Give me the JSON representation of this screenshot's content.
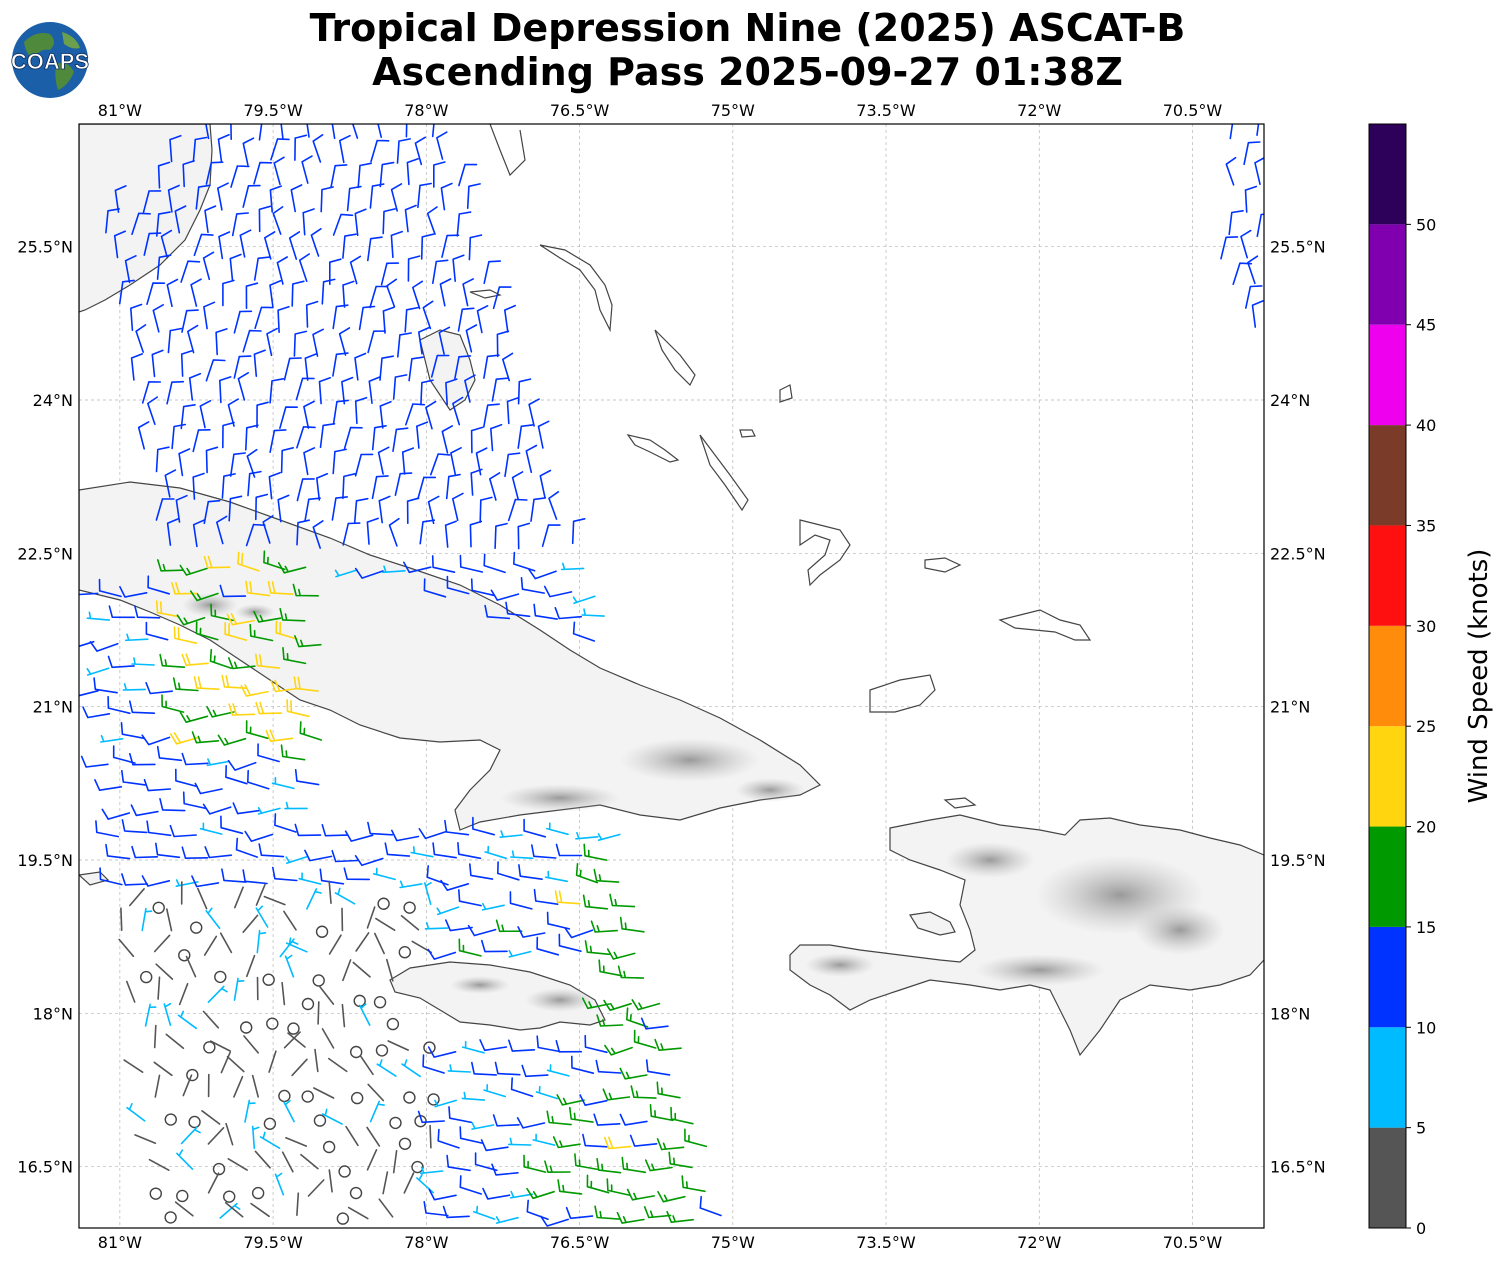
{
  "title": {
    "line1": "Tropical Depression Nine (2025) ASCAT-B",
    "line2": "Ascending Pass 2025-09-27 01:38Z"
  },
  "logo": {
    "text": "COAPS",
    "ocean_color": "#1a5fa8",
    "land_color": "#4f8a3c"
  },
  "map": {
    "lon_range": [
      -81.4,
      -69.8
    ],
    "lat_range": [
      15.9,
      26.7
    ],
    "lon_ticks": [
      -81,
      -79.5,
      -78,
      -76.5,
      -75,
      -73.5,
      -72,
      -70.5
    ],
    "lat_ticks": [
      25.5,
      24,
      22.5,
      21,
      19.5,
      18,
      16.5
    ],
    "lon_tick_labels": [
      "81°W",
      "79.5°W",
      "78°W",
      "76.5°W",
      "75°W",
      "73.5°W",
      "72°W",
      "70.5°W"
    ],
    "lat_tick_labels": [
      "25.5°N",
      "24°N",
      "22.5°N",
      "21°N",
      "19.5°N",
      "18°N",
      "16.5°N"
    ],
    "grid": true,
    "coastline_color": "#444444",
    "land_fill": "#f0f0f0",
    "terrain_shade": "#9a9a9a"
  },
  "colorbar": {
    "label": "Wind Speed (knots)",
    "bounds": [
      0,
      5,
      10,
      15,
      20,
      25,
      30,
      35,
      40,
      45,
      50,
      55
    ],
    "tick_values": [
      0,
      5,
      10,
      15,
      20,
      25,
      30,
      35,
      40,
      45,
      50
    ],
    "tick_labels": [
      "0",
      "5",
      "10",
      "15",
      "20",
      "25",
      "30",
      "35",
      "40",
      "45",
      "50"
    ],
    "colors": [
      "#555555",
      "#00bbff",
      "#0033ff",
      "#009900",
      "#ffd510",
      "#ff8c0a",
      "#ff1010",
      "#7a3c28",
      "#ee00ee",
      "#8000b0",
      "#2d005a"
    ]
  },
  "icons": {
    "barb": "wind-barb-icon",
    "calm": "calm-circle-icon"
  }
}
